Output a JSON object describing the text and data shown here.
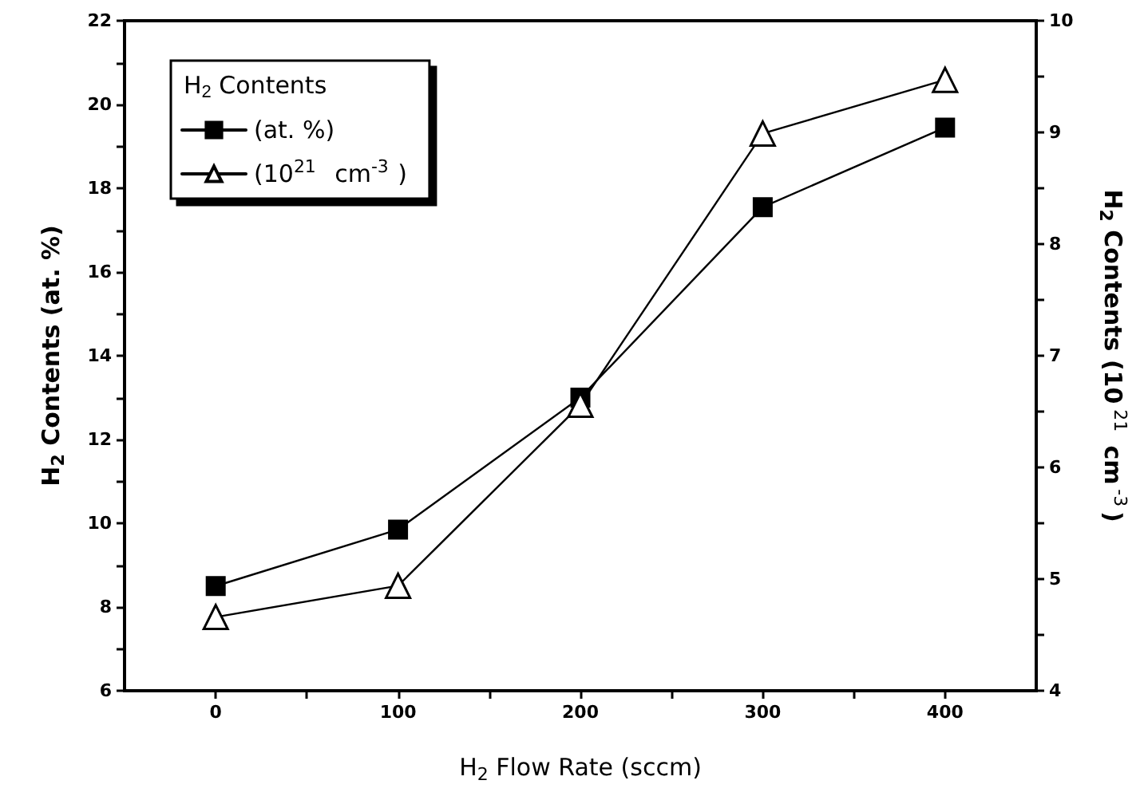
{
  "chart_data": {
    "type": "line",
    "xlabel": "H$_{2}$ Flow Rate (sccm)",
    "ylabel": "H$_{2}$ Contents (at. %)",
    "y2label": "H$_{2}$ Contents (10$^{21}$ cm$^{-3}$)",
    "legend_title": "H$_{2}$ Contents",
    "legend": "top left",
    "x": [
      0,
      100,
      200,
      300,
      400
    ],
    "series": [
      {
        "name": "(at. %)",
        "color": "#000000",
        "marker": "square",
        "values": [
          8.5,
          9.85,
          13.0,
          17.55,
          19.45
        ]
      },
      {
        "name": "(10$^{21}$ cm$^{-3}$)",
        "color": "#000000",
        "marker": "triangle",
        "axis": "y2",
        "values": [
          4.66,
          4.94,
          6.56,
          8.99,
          9.47
        ]
      }
    ],
    "xlim": [
      -50,
      450
    ],
    "xticks": [
      0,
      {
        "value": 50,
        "label": null
      },
      100,
      {
        "value": 150,
        "label": null
      },
      200,
      {
        "value": 250,
        "label": null
      },
      300,
      {
        "value": 350,
        "label": null
      },
      400
    ],
    "ylim": [
      6,
      22
    ],
    "yticks": [
      6,
      {
        "value": 7,
        "label": null
      },
      8,
      {
        "value": 9,
        "label": null
      },
      10,
      {
        "value": 11,
        "label": null
      },
      12,
      {
        "value": 13,
        "label": null
      },
      14,
      {
        "value": 15,
        "label": null
      },
      16,
      {
        "value": 17,
        "label": null
      },
      18,
      {
        "value": 19,
        "label": null
      },
      20,
      {
        "value": 21,
        "label": null
      },
      22
    ],
    "y2lim": [
      4,
      10
    ],
    "y2ticks": [
      4,
      {
        "value": 4.5,
        "label": null
      },
      5,
      {
        "value": 5.5,
        "label": null
      },
      6,
      {
        "value": 6.5,
        "label": null
      },
      7,
      {
        "value": 7.5,
        "label": null
      },
      8,
      {
        "value": 8.5,
        "label": null
      },
      9,
      {
        "value": 9.5,
        "label": null
      },
      10
    ],
    "grid": false
  }
}
